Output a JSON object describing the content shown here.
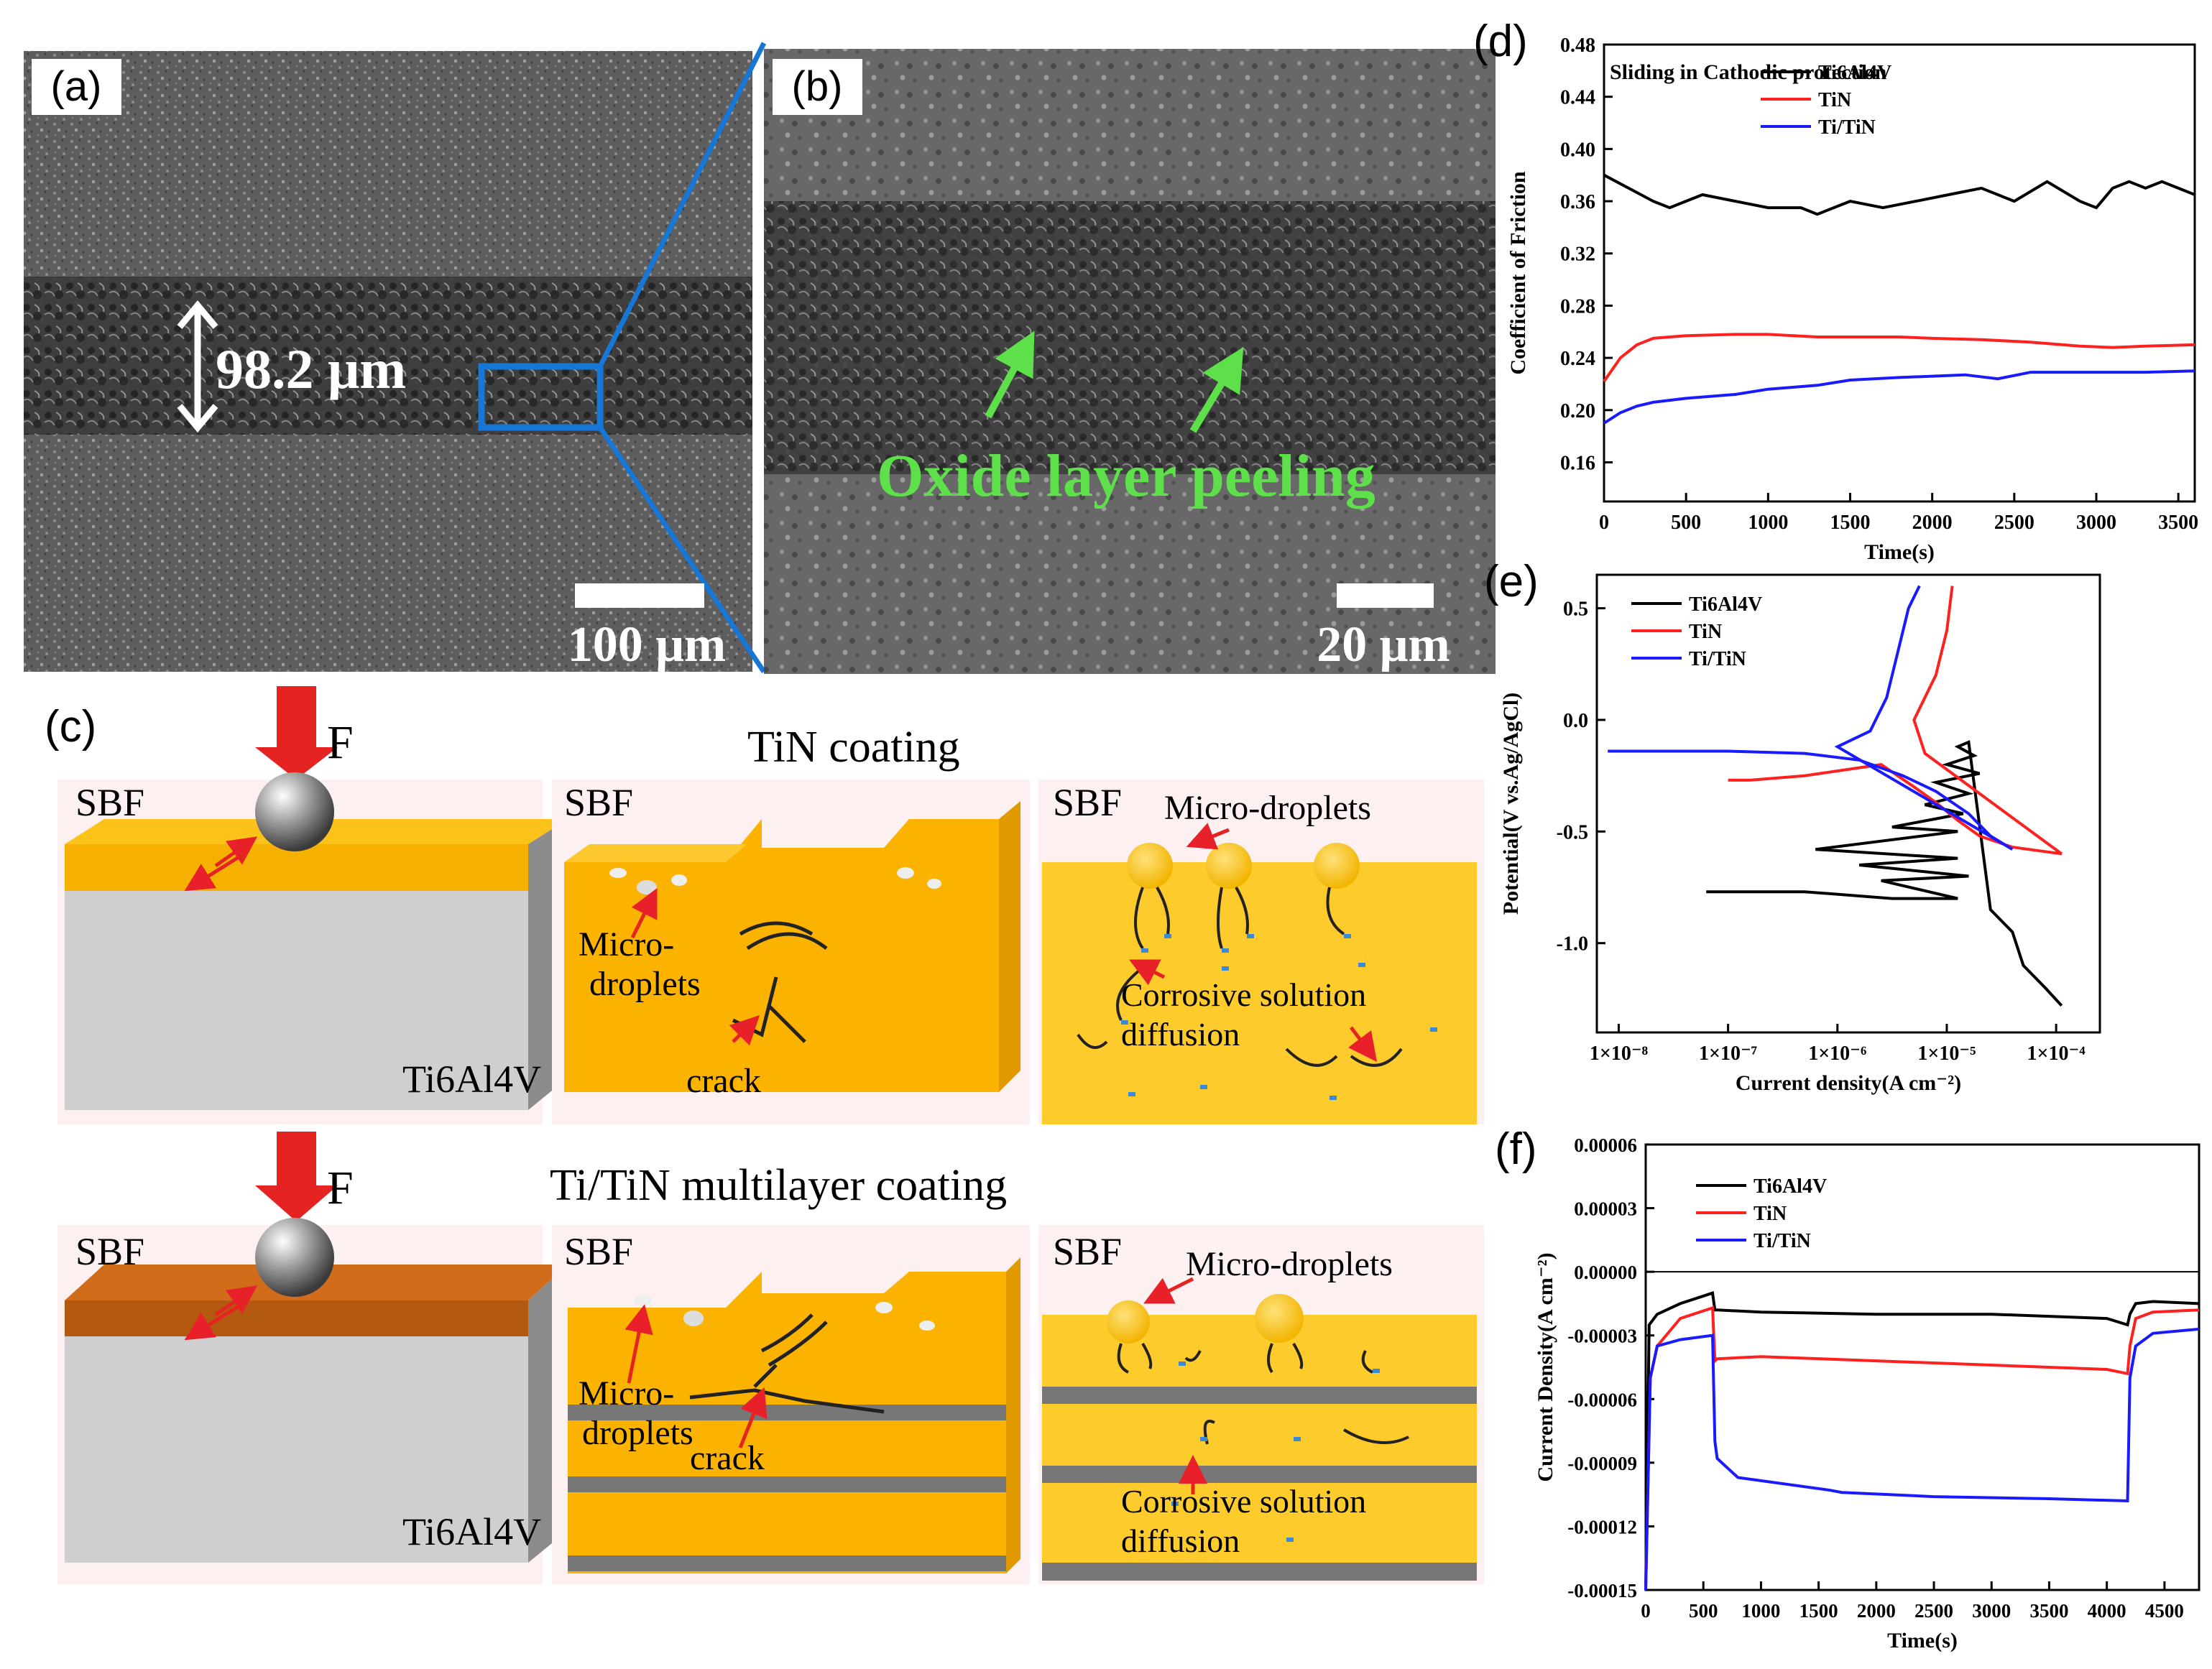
{
  "panels": {
    "a": {
      "label": "(a)",
      "width_annotation": "98.2 μm",
      "scale_bar": "100 μm"
    },
    "b": {
      "label": "(b)",
      "annotation": "Oxide layer peeling",
      "scale_bar": "20 μm"
    },
    "c": {
      "label": "(c)",
      "force_label": "F",
      "row1_title": "TiN coating",
      "row2_title": "Ti/TiN multilayer coating",
      "sbf": "SBF",
      "substrate": "Ti6Al4V",
      "micro_droplets_split": [
        "Micro-",
        "droplets"
      ],
      "micro_droplets": "Micro-droplets",
      "crack": "crack",
      "diffusion": [
        "Corrosive solution",
        "diffusion"
      ]
    }
  },
  "chart_data": [
    {
      "id": "d",
      "label": "(d)",
      "type": "line",
      "title": "Sliding in Cathodic protection",
      "xlabel": "Time(s)",
      "ylabel": "Coefficient of Friction",
      "xlim": [
        0,
        3600
      ],
      "ylim": [
        0.13,
        0.48
      ],
      "xticks": [
        "0",
        "500",
        "1000",
        "1500",
        "2000",
        "2500",
        "3000",
        "3500"
      ],
      "yticks": [
        "0.16",
        "0.20",
        "0.24",
        "0.28",
        "0.32",
        "0.36",
        "0.40",
        "0.44",
        "0.48"
      ],
      "legend": [
        "Ti6Al4V",
        "TiN",
        "Ti/TiN"
      ],
      "colors": [
        "#000000",
        "#ff2020",
        "#1a1aff"
      ],
      "series": [
        {
          "name": "Ti6Al4V",
          "x": [
            0,
            150,
            300,
            400,
            600,
            800,
            1000,
            1200,
            1300,
            1500,
            1700,
            1900,
            2100,
            2300,
            2500,
            2700,
            2900,
            3000,
            3100,
            3200,
            3300,
            3400,
            3500,
            3600
          ],
          "y": [
            0.38,
            0.37,
            0.36,
            0.355,
            0.365,
            0.36,
            0.355,
            0.355,
            0.35,
            0.36,
            0.355,
            0.36,
            0.365,
            0.37,
            0.36,
            0.375,
            0.36,
            0.355,
            0.37,
            0.375,
            0.37,
            0.375,
            0.37,
            0.365
          ]
        },
        {
          "name": "TiN",
          "x": [
            0,
            100,
            200,
            300,
            500,
            800,
            1000,
            1300,
            1500,
            1800,
            2000,
            2300,
            2600,
            2900,
            3100,
            3300,
            3600
          ],
          "y": [
            0.222,
            0.24,
            0.25,
            0.255,
            0.257,
            0.258,
            0.258,
            0.256,
            0.256,
            0.256,
            0.255,
            0.254,
            0.252,
            0.249,
            0.248,
            0.249,
            0.25
          ]
        },
        {
          "name": "Ti/TiN",
          "x": [
            0,
            100,
            200,
            300,
            500,
            800,
            1000,
            1300,
            1500,
            1800,
            2000,
            2200,
            2400,
            2600,
            2800,
            3000,
            3300,
            3600
          ],
          "y": [
            0.19,
            0.198,
            0.203,
            0.206,
            0.209,
            0.212,
            0.216,
            0.219,
            0.223,
            0.225,
            0.226,
            0.227,
            0.224,
            0.229,
            0.229,
            0.229,
            0.229,
            0.23
          ]
        }
      ]
    },
    {
      "id": "e",
      "label": "(e)",
      "type": "line",
      "xlabel": "Current density(A cm⁻²)",
      "ylabel": "Potential(V vs.Ag/AgCl)",
      "xscale": "log",
      "xlim_log10": [
        -8.2,
        -3.6
      ],
      "ylim": [
        -1.4,
        0.65
      ],
      "xticks": [
        "1×10⁻⁸",
        "1×10⁻⁷",
        "1×10⁻⁶",
        "1×10⁻⁵",
        "1×10⁻⁴"
      ],
      "yticks": [
        "-1.0",
        "-0.5",
        "0.0",
        "0.5"
      ],
      "legend": [
        "Ti6Al4V",
        "TiN",
        "Ti/TiN"
      ],
      "colors": [
        "#000000",
        "#ff2020",
        "#1a1aff"
      ],
      "series": [
        {
          "name": "Ti6Al4V",
          "x_log10": [
            -7.2,
            -6.3,
            -5.5,
            -4.9,
            -5.6,
            -4.8,
            -5.8,
            -4.9,
            -6.2,
            -4.9,
            -5.5,
            -4.85,
            -5.2,
            -4.8,
            -5.1,
            -4.7,
            -5.0,
            -4.75,
            -4.9,
            -4.8,
            -4.6,
            -4.4,
            -4.3,
            -4.1,
            -3.95
          ],
          "y": [
            -0.77,
            -0.77,
            -0.8,
            -0.8,
            -0.72,
            -0.7,
            -0.65,
            -0.62,
            -0.58,
            -0.5,
            -0.48,
            -0.42,
            -0.38,
            -0.33,
            -0.28,
            -0.24,
            -0.2,
            -0.16,
            -0.12,
            -0.1,
            -0.85,
            -0.95,
            -1.1,
            -1.2,
            -1.28
          ]
        },
        {
          "name": "TiN",
          "x_log10": [
            -7.0,
            -6.8,
            -6.3,
            -5.6,
            -5.3,
            -5.1,
            -4.9,
            -4.7,
            -4.4,
            -4.1,
            -3.95,
            -5.2,
            -5.3,
            -5.1,
            -5.0,
            -4.95
          ],
          "y": [
            -0.27,
            -0.27,
            -0.25,
            -0.2,
            -0.3,
            -0.37,
            -0.45,
            -0.52,
            -0.57,
            -0.59,
            -0.6,
            -0.15,
            0.0,
            0.2,
            0.4,
            0.6
          ]
        },
        {
          "name": "Ti/TiN",
          "x_log10": [
            -8.1,
            -7.0,
            -6.3,
            -5.8,
            -5.4,
            -5.1,
            -4.8,
            -4.6,
            -4.4,
            -6.0,
            -5.7,
            -5.55,
            -5.45,
            -5.35,
            -5.25
          ],
          "y": [
            -0.14,
            -0.14,
            -0.15,
            -0.18,
            -0.25,
            -0.32,
            -0.42,
            -0.52,
            -0.58,
            -0.12,
            -0.05,
            0.1,
            0.3,
            0.5,
            0.6
          ]
        }
      ]
    },
    {
      "id": "f",
      "label": "(f)",
      "type": "line",
      "xlabel": "Time(s)",
      "ylabel": "Current Density(A cm⁻²)",
      "xlim": [
        0,
        4800
      ],
      "ylim": [
        -0.00015,
        6e-05
      ],
      "xticks": [
        "0",
        "500",
        "1000",
        "1500",
        "2000",
        "2500",
        "3000",
        "3500",
        "4000",
        "4500"
      ],
      "yticks": [
        "0.00006",
        "0.00003",
        "0.00000",
        "-0.00003",
        "-0.00006",
        "-0.00009",
        "-0.00012",
        "-0.00015"
      ],
      "legend": [
        "Ti6Al4V",
        "TiN",
        "Ti/TiN"
      ],
      "colors": [
        "#000000",
        "#ff2020",
        "#1a1aff"
      ],
      "series": [
        {
          "name": "Ti6Al4V",
          "x": [
            0,
            30,
            100,
            300,
            580,
            600,
            620,
            1000,
            2000,
            3000,
            4000,
            4180,
            4200,
            4250,
            4400,
            4800
          ],
          "y": [
            -0.00015,
            -2.5e-05,
            -2e-05,
            -1.5e-05,
            -1e-05,
            -1.8e-05,
            -1.8e-05,
            -1.9e-05,
            -2e-05,
            -2e-05,
            -2.2e-05,
            -2.5e-05,
            -2e-05,
            -1.5e-05,
            -1.4e-05,
            -1.5e-05
          ]
        },
        {
          "name": "TiN",
          "x": [
            0,
            40,
            100,
            300,
            580,
            600,
            620,
            1000,
            2000,
            3000,
            4000,
            4180,
            4200,
            4250,
            4400,
            4800
          ],
          "y": [
            -0.00015,
            -5e-05,
            -3.5e-05,
            -2.2e-05,
            -1.7e-05,
            -4.2e-05,
            -4.1e-05,
            -4e-05,
            -4.2e-05,
            -4.4e-05,
            -4.6e-05,
            -4.8e-05,
            -3.5e-05,
            -2.2e-05,
            -1.9e-05,
            -1.8e-05
          ]
        },
        {
          "name": "Ti/TiN",
          "x": [
            0,
            40,
            100,
            300,
            580,
            600,
            620,
            800,
            1600,
            1700,
            2500,
            3500,
            4180,
            4200,
            4250,
            4400,
            4800
          ],
          "y": [
            -0.00015,
            -5e-05,
            -3.5e-05,
            -3.2e-05,
            -3e-05,
            -8e-05,
            -8.8e-05,
            -9.7e-05,
            -0.000103,
            -0.000104,
            -0.000106,
            -0.000107,
            -0.000108,
            -5e-05,
            -3.5e-05,
            -2.9e-05,
            -2.7e-05
          ]
        }
      ]
    }
  ]
}
